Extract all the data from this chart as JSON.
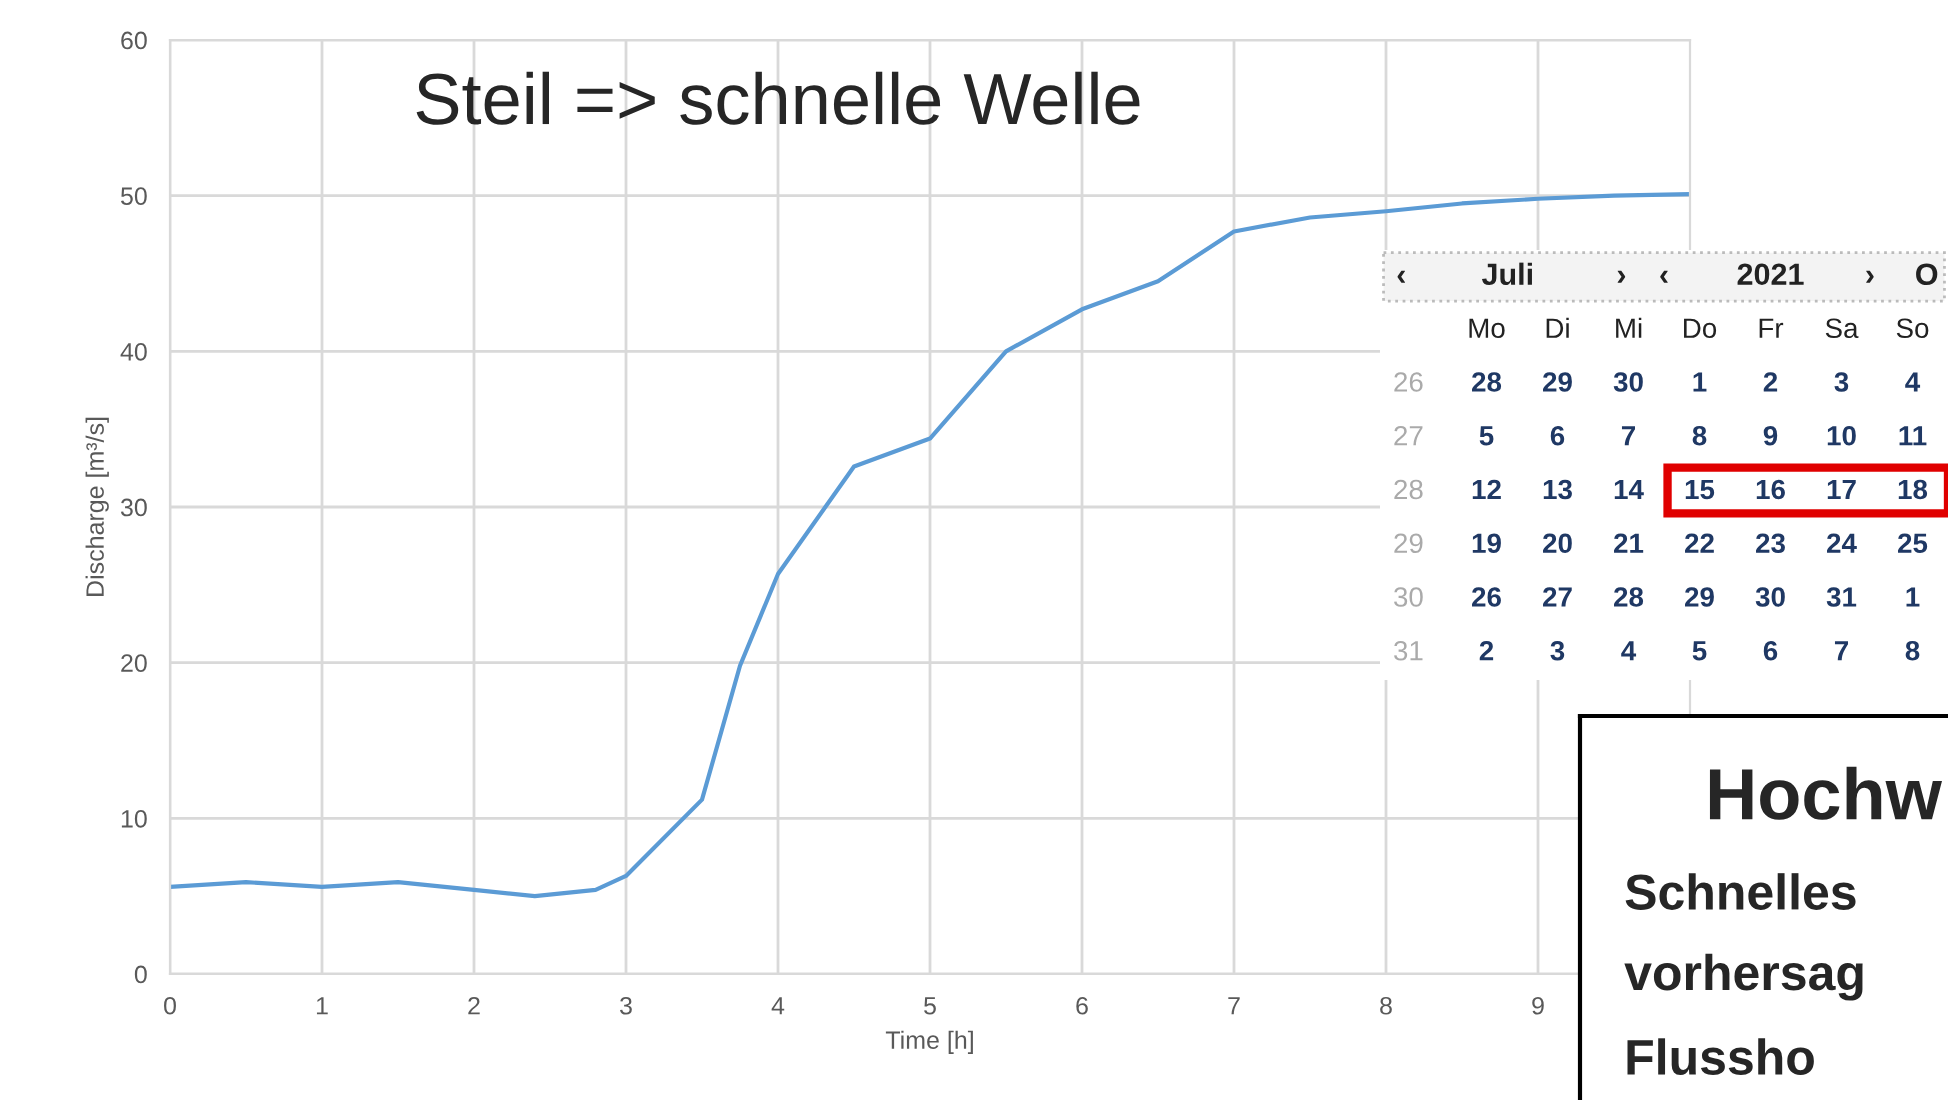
{
  "chart_data": {
    "type": "line",
    "title": "Steil => schnelle Welle",
    "xlabel": "Time [h]",
    "ylabel": "Discharge [m³/s]",
    "x": [
      0,
      0.5,
      1,
      1.5,
      2,
      2.4,
      2.8,
      3,
      3.5,
      3.75,
      4,
      4.5,
      5,
      5.5,
      6,
      6.5,
      7,
      7.5,
      8,
      8.5,
      9,
      9.5,
      10
    ],
    "series": [
      {
        "color": "#5b9bd5",
        "values": [
          5.6,
          5.9,
          5.6,
          5.9,
          5.4,
          5.0,
          5.4,
          6.3,
          11.2,
          19.8,
          25.7,
          32.6,
          34.4,
          40.0,
          42.7,
          44.5,
          47.7,
          48.6,
          49.0,
          49.5,
          49.8,
          50.0,
          50.1
        ]
      }
    ],
    "xlim": [
      0,
      10
    ],
    "xticks": [
      0,
      1,
      2,
      3,
      4,
      5,
      6,
      7,
      8,
      9
    ],
    "ylim": [
      0,
      60
    ],
    "yticks": [
      0,
      10,
      20,
      30,
      40,
      50,
      60
    ],
    "grid": true,
    "legend": false,
    "marker": "none",
    "line_style": "solid",
    "annotations": [
      "‹ Juli › ‹ 2021 › O",
      "Mo Di Mi Do Fr Sa So",
      "26 28 29 30 1 2 3 4",
      "27 5 6 7 8 9 10 11",
      "28 12 13 14 15 16 17 18",
      "29 19 20 21 22 23 24 25",
      "30 26 27 28 29 30 31 1",
      "31 2 3 4 5 6 7 8",
      "Hochw",
      "Schnelles",
      "vorhersag",
      "Flussho"
    ]
  }
}
